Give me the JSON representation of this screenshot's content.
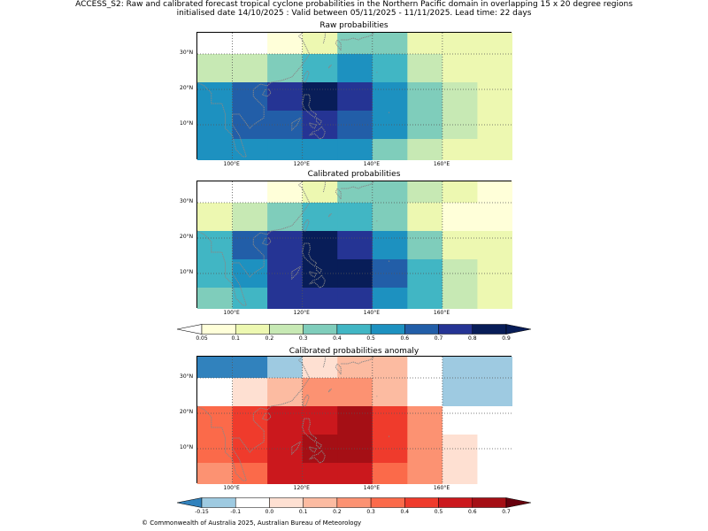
{
  "header": {
    "line1": "ACCESS_S2: Raw and calibrated forecast tropical cyclone probabilities in the Northern Pacific domain in overlapping 15 x 20 degree regions",
    "line2": "initialised date 14/10/2025 :  Valid between 05/11/2025 - 11/11/2025. Lead time: 22 days"
  },
  "footer": {
    "copyright": "© Commonwealth of Australia 2025, Australian Bureau of Meteorology"
  },
  "axes": {
    "xticks": [
      "100°E",
      "120°E",
      "140°E",
      "160°E"
    ],
    "xtick_values": [
      100,
      120,
      140,
      160
    ],
    "yticks": [
      "30°N",
      "20°N",
      "10°N"
    ],
    "ytick_values": [
      30,
      20,
      10
    ],
    "lon_range": [
      90,
      180
    ],
    "lat_range": [
      0,
      36
    ]
  },
  "colorbars": {
    "probability": {
      "labels": [
        "0.05",
        "0.1",
        "0.2",
        "0.3",
        "0.4",
        "0.5",
        "0.6",
        "0.7",
        "0.8",
        "0.9"
      ],
      "colors": [
        "#ffffd9",
        "#edf8b1",
        "#c7e9b4",
        "#7fcdbb",
        "#41b6c4",
        "#1d91c0",
        "#225ea8",
        "#253494",
        "#081d58"
      ],
      "under": "#ffffff",
      "over": "#081d58"
    },
    "anomaly": {
      "labels": [
        "-0.15",
        "-0.1",
        "0.0",
        "0.1",
        "0.2",
        "0.3",
        "0.4",
        "0.5",
        "0.6",
        "0.7"
      ],
      "colors": [
        "#9ecae1",
        "#ffffff",
        "#fee0d2",
        "#fcbba1",
        "#fc9272",
        "#fb6a4a",
        "#ef3b2c",
        "#cb181d",
        "#a50f15"
      ],
      "under": "#3182bd",
      "over": "#67000d"
    }
  },
  "chart_data": [
    {
      "type": "heatmap",
      "title": "Raw probabilities",
      "lon_edges": [
        90,
        100,
        110,
        120,
        130,
        140,
        150,
        160,
        170,
        180
      ],
      "lat_edges": [
        36,
        30,
        22,
        14,
        6,
        0
      ],
      "bins": [
        0.05,
        0.1,
        0.2,
        0.3,
        0.4,
        0.5,
        0.6,
        0.7,
        0.8,
        0.9
      ],
      "values": [
        [
          0.02,
          0.02,
          0.08,
          0.15,
          0.35,
          0.35,
          0.15,
          0.15,
          0.15
        ],
        [
          0.25,
          0.25,
          0.35,
          0.45,
          0.55,
          0.45,
          0.25,
          0.15,
          0.15
        ],
        [
          0.55,
          0.65,
          0.75,
          0.85,
          0.75,
          0.55,
          0.35,
          0.25,
          0.15
        ],
        [
          0.55,
          0.65,
          0.65,
          0.75,
          0.65,
          0.55,
          0.35,
          0.25,
          0.15
        ],
        [
          0.55,
          0.55,
          0.55,
          0.55,
          0.55,
          0.35,
          0.25,
          0.15,
          0.15
        ]
      ]
    },
    {
      "type": "heatmap",
      "title": "Calibrated probabilities",
      "lon_edges": [
        90,
        100,
        110,
        120,
        130,
        140,
        150,
        160,
        170,
        180
      ],
      "lat_edges": [
        36,
        30,
        22,
        14,
        6,
        0
      ],
      "bins": [
        0.05,
        0.1,
        0.2,
        0.3,
        0.4,
        0.5,
        0.6,
        0.7,
        0.8,
        0.9
      ],
      "values": [
        [
          0.02,
          0.02,
          0.08,
          0.15,
          0.35,
          0.35,
          0.25,
          0.15,
          0.08
        ],
        [
          0.15,
          0.25,
          0.35,
          0.45,
          0.45,
          0.35,
          0.15,
          0.08,
          0.08
        ],
        [
          0.45,
          0.65,
          0.75,
          0.85,
          0.75,
          0.55,
          0.35,
          0.15,
          0.15
        ],
        [
          0.45,
          0.55,
          0.75,
          0.85,
          0.85,
          0.65,
          0.45,
          0.25,
          0.15
        ],
        [
          0.35,
          0.45,
          0.75,
          0.75,
          0.75,
          0.55,
          0.45,
          0.25,
          0.15
        ]
      ]
    },
    {
      "type": "heatmap",
      "title": "Calibrated probabilities anomaly",
      "lon_edges": [
        90,
        100,
        110,
        120,
        130,
        140,
        150,
        160,
        170,
        180
      ],
      "lat_edges": [
        36,
        30,
        22,
        14,
        6,
        0
      ],
      "bins": [
        -0.15,
        -0.1,
        0.0,
        0.1,
        0.2,
        0.3,
        0.4,
        0.5,
        0.6,
        0.7
      ],
      "values": [
        [
          -0.18,
          -0.18,
          -0.12,
          0.05,
          0.15,
          0.15,
          -0.05,
          -0.12,
          -0.12
        ],
        [
          -0.05,
          0.05,
          0.15,
          0.25,
          0.25,
          0.15,
          -0.05,
          -0.12,
          -0.12
        ],
        [
          0.35,
          0.45,
          0.55,
          0.55,
          0.65,
          0.45,
          0.25,
          -0.05,
          -0.05
        ],
        [
          0.35,
          0.45,
          0.55,
          0.65,
          0.65,
          0.45,
          0.25,
          0.05,
          -0.05
        ],
        [
          0.25,
          0.35,
          0.55,
          0.55,
          0.55,
          0.35,
          0.25,
          0.05,
          -0.05
        ]
      ]
    }
  ]
}
